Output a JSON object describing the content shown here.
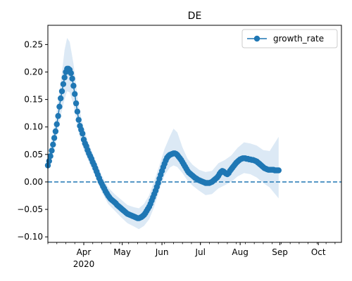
{
  "chart_data": {
    "type": "line",
    "title": "DE",
    "xlabel": "",
    "ylabel": "",
    "x_axis": {
      "kind": "date",
      "range": [
        "2020-03-04",
        "2020-10-19"
      ],
      "ticks": [
        {
          "date": "2020-04-01",
          "label": "Apr"
        },
        {
          "date": "2020-05-01",
          "label": "May"
        },
        {
          "date": "2020-06-01",
          "label": "Jun"
        },
        {
          "date": "2020-07-01",
          "label": "Jul"
        },
        {
          "date": "2020-08-01",
          "label": "Aug"
        },
        {
          "date": "2020-09-01",
          "label": "Sep"
        },
        {
          "date": "2020-10-01",
          "label": "Oct"
        }
      ],
      "year_label": "2020"
    },
    "ylim": [
      -0.11,
      0.285
    ],
    "yticks": [
      -0.1,
      -0.05,
      0.0,
      0.05,
      0.1,
      0.15,
      0.2,
      0.25
    ],
    "ytick_labels": [
      "−0.10",
      "−0.05",
      "0.00",
      "0.05",
      "0.10",
      "0.15",
      "0.20",
      "0.25"
    ],
    "reference_line": {
      "y": 0.0,
      "style": "dashed"
    },
    "legend": {
      "position": "upper-right",
      "entries": [
        "growth_rate"
      ]
    },
    "colors": {
      "series": "#1f77b4",
      "band": "#dce9f5"
    },
    "series": [
      {
        "name": "growth_rate",
        "points": [
          [
            "2020-03-04",
            0.03
          ],
          [
            "2020-03-05",
            0.038
          ],
          [
            "2020-03-06",
            0.047
          ],
          [
            "2020-03-07",
            0.057
          ],
          [
            "2020-03-08",
            0.068
          ],
          [
            "2020-03-09",
            0.08
          ],
          [
            "2020-03-10",
            0.092
          ],
          [
            "2020-03-11",
            0.105
          ],
          [
            "2020-03-12",
            0.12
          ],
          [
            "2020-03-13",
            0.137
          ],
          [
            "2020-03-14",
            0.152
          ],
          [
            "2020-03-15",
            0.165
          ],
          [
            "2020-03-16",
            0.178
          ],
          [
            "2020-03-17",
            0.19
          ],
          [
            "2020-03-18",
            0.2
          ],
          [
            "2020-03-19",
            0.206
          ],
          [
            "2020-03-20",
            0.206
          ],
          [
            "2020-03-21",
            0.204
          ],
          [
            "2020-03-22",
            0.198
          ],
          [
            "2020-03-23",
            0.188
          ],
          [
            "2020-03-24",
            0.175
          ],
          [
            "2020-03-25",
            0.16
          ],
          [
            "2020-03-26",
            0.143
          ],
          [
            "2020-03-27",
            0.128
          ],
          [
            "2020-03-28",
            0.113
          ],
          [
            "2020-03-29",
            0.102
          ],
          [
            "2020-03-30",
            0.095
          ],
          [
            "2020-03-31",
            0.088
          ],
          [
            "2020-04-01",
            0.077
          ],
          [
            "2020-04-02",
            0.07
          ],
          [
            "2020-04-03",
            0.065
          ],
          [
            "2020-04-04",
            0.058
          ],
          [
            "2020-04-05",
            0.052
          ],
          [
            "2020-04-06",
            0.047
          ],
          [
            "2020-04-07",
            0.042
          ],
          [
            "2020-04-08",
            0.036
          ],
          [
            "2020-04-09",
            0.031
          ],
          [
            "2020-04-10",
            0.025
          ],
          [
            "2020-04-11",
            0.019
          ],
          [
            "2020-04-12",
            0.013
          ],
          [
            "2020-04-13",
            0.007
          ],
          [
            "2020-04-14",
            0.001
          ],
          [
            "2020-04-15",
            -0.003
          ],
          [
            "2020-04-16",
            -0.008
          ],
          [
            "2020-04-17",
            -0.012
          ],
          [
            "2020-04-18",
            -0.017
          ],
          [
            "2020-04-19",
            -0.021
          ],
          [
            "2020-04-20",
            -0.025
          ],
          [
            "2020-04-21",
            -0.028
          ],
          [
            "2020-04-22",
            -0.031
          ],
          [
            "2020-04-23",
            -0.033
          ],
          [
            "2020-04-24",
            -0.035
          ],
          [
            "2020-04-25",
            -0.037
          ],
          [
            "2020-04-26",
            -0.039
          ],
          [
            "2020-04-27",
            -0.042
          ],
          [
            "2020-04-28",
            -0.044
          ],
          [
            "2020-04-29",
            -0.046
          ],
          [
            "2020-04-30",
            -0.048
          ],
          [
            "2020-05-01",
            -0.05
          ],
          [
            "2020-05-02",
            -0.052
          ],
          [
            "2020-05-03",
            -0.054
          ],
          [
            "2020-05-04",
            -0.056
          ],
          [
            "2020-05-05",
            -0.058
          ],
          [
            "2020-05-06",
            -0.059
          ],
          [
            "2020-05-07",
            -0.06
          ],
          [
            "2020-05-08",
            -0.061
          ],
          [
            "2020-05-09",
            -0.062
          ],
          [
            "2020-05-10",
            -0.063
          ],
          [
            "2020-05-11",
            -0.064
          ],
          [
            "2020-05-12",
            -0.065
          ],
          [
            "2020-05-13",
            -0.066
          ],
          [
            "2020-05-14",
            -0.066
          ],
          [
            "2020-05-15",
            -0.065
          ],
          [
            "2020-05-16",
            -0.064
          ],
          [
            "2020-05-17",
            -0.062
          ],
          [
            "2020-05-18",
            -0.06
          ],
          [
            "2020-05-19",
            -0.057
          ],
          [
            "2020-05-20",
            -0.053
          ],
          [
            "2020-05-21",
            -0.049
          ],
          [
            "2020-05-22",
            -0.045
          ],
          [
            "2020-05-23",
            -0.04
          ],
          [
            "2020-05-24",
            -0.034
          ],
          [
            "2020-05-25",
            -0.028
          ],
          [
            "2020-05-26",
            -0.022
          ],
          [
            "2020-05-27",
            -0.016
          ],
          [
            "2020-05-28",
            -0.009
          ],
          [
            "2020-05-29",
            -0.002
          ],
          [
            "2020-05-30",
            0.006
          ],
          [
            "2020-05-31",
            0.013
          ],
          [
            "2020-06-01",
            0.02
          ],
          [
            "2020-06-02",
            0.027
          ],
          [
            "2020-06-03",
            0.033
          ],
          [
            "2020-06-04",
            0.039
          ],
          [
            "2020-06-05",
            0.044
          ],
          [
            "2020-06-06",
            0.047
          ],
          [
            "2020-06-07",
            0.049
          ],
          [
            "2020-06-08",
            0.05
          ],
          [
            "2020-06-09",
            0.051
          ],
          [
            "2020-06-10",
            0.052
          ],
          [
            "2020-06-11",
            0.052
          ],
          [
            "2020-06-12",
            0.051
          ],
          [
            "2020-06-13",
            0.049
          ],
          [
            "2020-06-14",
            0.046
          ],
          [
            "2020-06-15",
            0.043
          ],
          [
            "2020-06-16",
            0.04
          ],
          [
            "2020-06-17",
            0.036
          ],
          [
            "2020-06-18",
            0.032
          ],
          [
            "2020-06-19",
            0.028
          ],
          [
            "2020-06-20",
            0.024
          ],
          [
            "2020-06-21",
            0.02
          ],
          [
            "2020-06-22",
            0.017
          ],
          [
            "2020-06-23",
            0.015
          ],
          [
            "2020-06-24",
            0.013
          ],
          [
            "2020-06-25",
            0.011
          ],
          [
            "2020-06-26",
            0.009
          ],
          [
            "2020-06-27",
            0.007
          ],
          [
            "2020-06-28",
            0.006
          ],
          [
            "2020-06-29",
            0.004
          ],
          [
            "2020-06-30",
            0.003
          ],
          [
            "2020-07-01",
            0.002
          ],
          [
            "2020-07-02",
            0.001
          ],
          [
            "2020-07-03",
            0.0
          ],
          [
            "2020-07-04",
            -0.001
          ],
          [
            "2020-07-05",
            -0.002
          ],
          [
            "2020-07-06",
            -0.002
          ],
          [
            "2020-07-07",
            -0.002
          ],
          [
            "2020-07-08",
            -0.002
          ],
          [
            "2020-07-09",
            -0.001
          ],
          [
            "2020-07-10",
            0.0
          ],
          [
            "2020-07-11",
            0.002
          ],
          [
            "2020-07-12",
            0.004
          ],
          [
            "2020-07-13",
            0.006
          ],
          [
            "2020-07-14",
            0.008
          ],
          [
            "2020-07-15",
            0.011
          ],
          [
            "2020-07-16",
            0.015
          ],
          [
            "2020-07-17",
            0.018
          ],
          [
            "2020-07-18",
            0.02
          ],
          [
            "2020-07-19",
            0.019
          ],
          [
            "2020-07-20",
            0.017
          ],
          [
            "2020-07-21",
            0.015
          ],
          [
            "2020-07-22",
            0.014
          ],
          [
            "2020-07-23",
            0.016
          ],
          [
            "2020-07-24",
            0.02
          ],
          [
            "2020-07-25",
            0.023
          ],
          [
            "2020-07-26",
            0.026
          ],
          [
            "2020-07-27",
            0.029
          ],
          [
            "2020-07-28",
            0.032
          ],
          [
            "2020-07-29",
            0.035
          ],
          [
            "2020-07-30",
            0.037
          ],
          [
            "2020-07-31",
            0.039
          ],
          [
            "2020-08-01",
            0.041
          ],
          [
            "2020-08-02",
            0.042
          ],
          [
            "2020-08-03",
            0.043
          ],
          [
            "2020-08-04",
            0.043
          ],
          [
            "2020-08-05",
            0.043
          ],
          [
            "2020-08-06",
            0.042
          ],
          [
            "2020-08-07",
            0.042
          ],
          [
            "2020-08-08",
            0.041
          ],
          [
            "2020-08-09",
            0.041
          ],
          [
            "2020-08-10",
            0.04
          ],
          [
            "2020-08-11",
            0.04
          ],
          [
            "2020-08-12",
            0.039
          ],
          [
            "2020-08-13",
            0.038
          ],
          [
            "2020-08-14",
            0.037
          ],
          [
            "2020-08-15",
            0.035
          ],
          [
            "2020-08-16",
            0.033
          ],
          [
            "2020-08-17",
            0.031
          ],
          [
            "2020-08-18",
            0.029
          ],
          [
            "2020-08-19",
            0.027
          ],
          [
            "2020-08-20",
            0.025
          ],
          [
            "2020-08-21",
            0.024
          ],
          [
            "2020-08-22",
            0.023
          ],
          [
            "2020-08-23",
            0.022
          ],
          [
            "2020-08-24",
            0.022
          ],
          [
            "2020-08-25",
            0.022
          ],
          [
            "2020-08-26",
            0.022
          ],
          [
            "2020-08-27",
            0.022
          ],
          [
            "2020-08-28",
            0.021
          ],
          [
            "2020-08-29",
            0.021
          ],
          [
            "2020-08-30",
            0.021
          ],
          [
            "2020-08-31",
            0.021
          ]
        ]
      }
    ],
    "band": {
      "name": "uncertainty band",
      "points": [
        [
          "2020-03-04",
          0.02,
          0.04
        ],
        [
          "2020-03-10",
          0.07,
          0.115
        ],
        [
          "2020-03-14",
          0.12,
          0.18
        ],
        [
          "2020-03-17",
          0.15,
          0.24
        ],
        [
          "2020-03-19",
          0.165,
          0.262
        ],
        [
          "2020-03-21",
          0.163,
          0.255
        ],
        [
          "2020-03-24",
          0.14,
          0.215
        ],
        [
          "2020-03-28",
          0.09,
          0.14
        ],
        [
          "2020-04-01",
          0.058,
          0.096
        ],
        [
          "2020-04-05",
          0.036,
          0.069
        ],
        [
          "2020-04-10",
          0.01,
          0.04
        ],
        [
          "2020-04-15",
          -0.018,
          0.012
        ],
        [
          "2020-04-20",
          -0.04,
          -0.01
        ],
        [
          "2020-04-25",
          -0.052,
          -0.022
        ],
        [
          "2020-04-30",
          -0.064,
          -0.032
        ],
        [
          "2020-05-05",
          -0.075,
          -0.042
        ],
        [
          "2020-05-10",
          -0.081,
          -0.046
        ],
        [
          "2020-05-14",
          -0.086,
          -0.048
        ],
        [
          "2020-05-18",
          -0.08,
          -0.04
        ],
        [
          "2020-05-22",
          -0.068,
          -0.024
        ],
        [
          "2020-05-26",
          -0.045,
          0.002
        ],
        [
          "2020-05-30",
          -0.015,
          0.03
        ],
        [
          "2020-06-03",
          0.012,
          0.06
        ],
        [
          "2020-06-07",
          0.026,
          0.082
        ],
        [
          "2020-06-10",
          0.03,
          0.097
        ],
        [
          "2020-06-13",
          0.027,
          0.09
        ],
        [
          "2020-06-17",
          0.016,
          0.063
        ],
        [
          "2020-06-21",
          0.002,
          0.042
        ],
        [
          "2020-06-25",
          -0.007,
          0.031
        ],
        [
          "2020-06-30",
          -0.016,
          0.022
        ],
        [
          "2020-07-05",
          -0.024,
          0.018
        ],
        [
          "2020-07-10",
          -0.022,
          0.02
        ],
        [
          "2020-07-15",
          -0.012,
          0.034
        ],
        [
          "2020-07-20",
          -0.006,
          0.04
        ],
        [
          "2020-07-25",
          0.0,
          0.048
        ],
        [
          "2020-07-30",
          0.01,
          0.062
        ],
        [
          "2020-08-04",
          0.016,
          0.072
        ],
        [
          "2020-08-09",
          0.014,
          0.07
        ],
        [
          "2020-08-14",
          0.008,
          0.066
        ],
        [
          "2020-08-19",
          -0.002,
          0.058
        ],
        [
          "2020-08-24",
          -0.01,
          0.056
        ],
        [
          "2020-08-31",
          -0.03,
          0.082
        ]
      ]
    }
  }
}
